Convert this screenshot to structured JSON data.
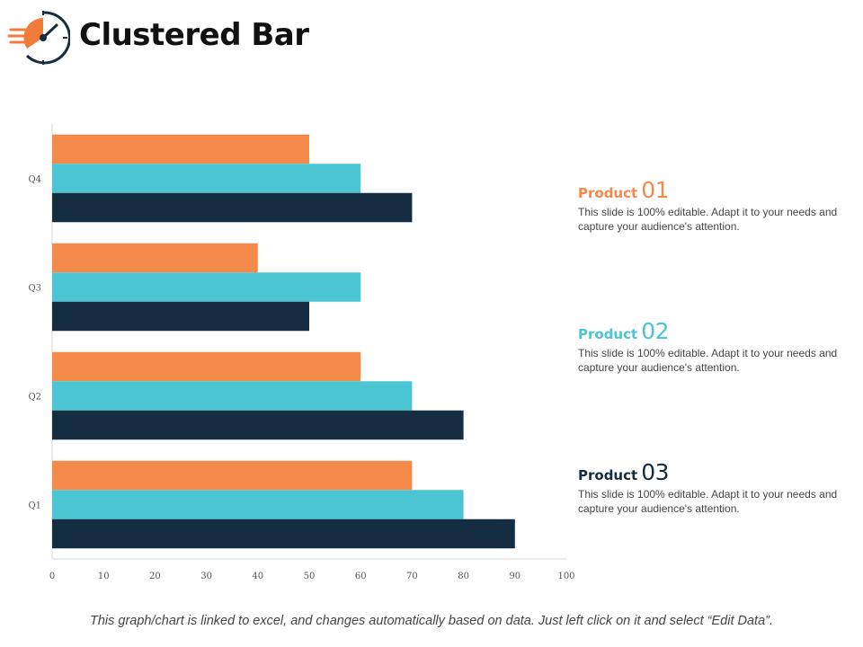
{
  "header": {
    "title": "Clustered Bar",
    "logo_icon": "speedometer-icon"
  },
  "colors": {
    "orange": "#f48a4a",
    "teal": "#4cc5d3",
    "navy": "#142d40",
    "logo": "#f07b3a",
    "logo_dark": "#142d40"
  },
  "chart_data": {
    "type": "bar",
    "orientation": "horizontal",
    "categories": [
      "Q1",
      "Q2",
      "Q3",
      "Q4"
    ],
    "series": [
      {
        "name": "Product 01",
        "color": "#f48a4a",
        "values": [
          70,
          60,
          40,
          50
        ]
      },
      {
        "name": "Product 02",
        "color": "#4cc5d3",
        "values": [
          80,
          70,
          60,
          60
        ]
      },
      {
        "name": "Product 03",
        "color": "#142d40",
        "values": [
          90,
          80,
          50,
          70
        ]
      }
    ],
    "xlim": [
      0,
      100
    ],
    "xticks": [
      0,
      10,
      20,
      30,
      40,
      50,
      60,
      70,
      80,
      90,
      100
    ],
    "title": "Clustered Bar",
    "xlabel": "",
    "ylabel": "",
    "grid": false
  },
  "products": [
    {
      "label": "Product",
      "number": "01",
      "color": "#f48a4a",
      "description": "This slide is 100% editable. Adapt it to your needs and capture your audience's attention."
    },
    {
      "label": "Product",
      "number": "02",
      "color": "#4cc5d3",
      "description": "This slide is 100% editable. Adapt it to your needs and capture your audience's attention."
    },
    {
      "label": "Product",
      "number": "03",
      "color": "#142d40",
      "description": "This slide is 100% editable. Adapt it to your needs and capture your audience's attention."
    }
  ],
  "footer": {
    "note": "This graph/chart is linked to excel, and changes automatically based on data. Just left click on it and select “Edit Data”."
  }
}
